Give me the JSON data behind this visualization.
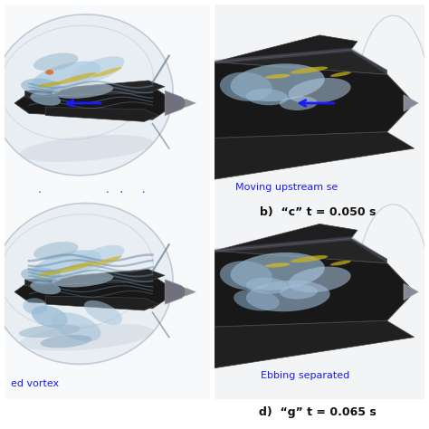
{
  "bg_color": "#ffffff",
  "label_b_text": "b)  “c” t = 0.050 s",
  "label_d_text": "d)  “g” t = 0.065 s",
  "top_left_annotation": "g upstream separated vortex",
  "top_right_annotation": "Moving upstream se",
  "bottom_left_annotation": "ed vortex",
  "bottom_right_annotation": "Ebbing separated",
  "annotation_color": "#1a1aff",
  "label_fontsize": 9,
  "annotation_fontsize": 8,
  "panel_bg_left": "#e8ecf0",
  "panel_bg_right": "#f0f2f4"
}
